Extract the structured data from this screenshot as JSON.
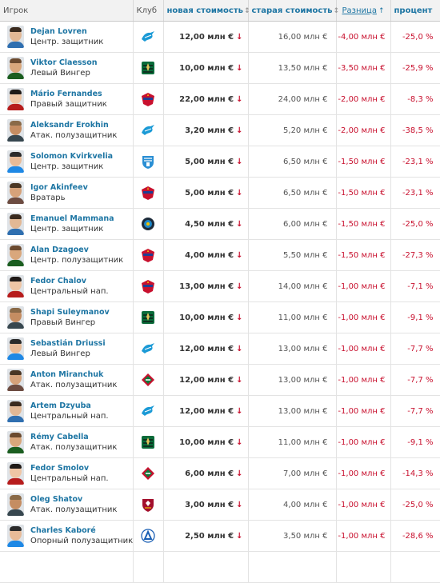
{
  "headers": {
    "player": "Игрок",
    "club": "Клуб",
    "new_value": "новая стоимость",
    "old_value": "старая стоимость",
    "difference": "Разница",
    "percent": "процент"
  },
  "colors": {
    "link": "#1d75a3",
    "negative": "#c8102e"
  },
  "rows": [
    {
      "name": "Dejan Lovren",
      "position": "Центр. защитник",
      "club_icon": "zenit-logo",
      "new_value": "12,00 млн €",
      "old_value": "16,00 млн €",
      "difference": "-4,00 млн €",
      "percent": "-25,0 %"
    },
    {
      "name": "Viktor Claesson",
      "position": "Левый Вингер",
      "club_icon": "krasnodar-logo",
      "new_value": "10,00 млн €",
      "old_value": "13,50 млн €",
      "difference": "-3,50 млн €",
      "percent": "-25,9 %"
    },
    {
      "name": "Mário Fernandes",
      "position": "Правый защитник",
      "club_icon": "cska-logo",
      "new_value": "22,00 млн €",
      "old_value": "24,00 млн €",
      "difference": "-2,00 млн €",
      "percent": "-8,3 %"
    },
    {
      "name": "Aleksandr Erokhin",
      "position": "Атак. полузащитник",
      "club_icon": "zenit-logo",
      "new_value": "3,20 млн €",
      "old_value": "5,20 млн €",
      "difference": "-2,00 млн €",
      "percent": "-38,5 %"
    },
    {
      "name": "Solomon Kvirkvelia",
      "position": "Центр. защитник",
      "club_icon": "rotor-logo",
      "new_value": "5,00 млн €",
      "old_value": "6,50 млн €",
      "difference": "-1,50 млн €",
      "percent": "-23,1 %"
    },
    {
      "name": "Igor Akinfeev",
      "position": "Вратарь",
      "club_icon": "cska-logo",
      "new_value": "5,00 млн €",
      "old_value": "6,50 млн €",
      "difference": "-1,50 млн €",
      "percent": "-23,1 %"
    },
    {
      "name": "Emanuel Mammana",
      "position": "Центр. защитник",
      "club_icon": "sochi-logo",
      "new_value": "4,50 млн €",
      "old_value": "6,00 млн €",
      "difference": "-1,50 млн €",
      "percent": "-25,0 %"
    },
    {
      "name": "Alan Dzagoev",
      "position": "Центр. полузащитник",
      "club_icon": "cska-logo",
      "new_value": "4,00 млн €",
      "old_value": "5,50 млн €",
      "difference": "-1,50 млн €",
      "percent": "-27,3 %"
    },
    {
      "name": "Fedor Chalov",
      "position": "Центральный нап.",
      "club_icon": "cska-logo",
      "new_value": "13,00 млн €",
      "old_value": "14,00 млн €",
      "difference": "-1,00 млн €",
      "percent": "-7,1 %"
    },
    {
      "name": "Shapi Suleymanov",
      "position": "Правый Вингер",
      "club_icon": "krasnodar-logo",
      "new_value": "10,00 млн €",
      "old_value": "11,00 млн €",
      "difference": "-1,00 млн €",
      "percent": "-9,1 %"
    },
    {
      "name": "Sebastián Driussi",
      "position": "Левый Вингер",
      "club_icon": "zenit-logo",
      "new_value": "12,00 млн €",
      "old_value": "13,00 млн €",
      "difference": "-1,00 млн €",
      "percent": "-7,7 %"
    },
    {
      "name": "Anton Miranchuk",
      "position": "Атак. полузащитник",
      "club_icon": "lokomotiv-logo",
      "new_value": "12,00 млн €",
      "old_value": "13,00 млн €",
      "difference": "-1,00 млн €",
      "percent": "-7,7 %"
    },
    {
      "name": "Artem Dzyuba",
      "position": "Центральный нап.",
      "club_icon": "zenit-logo",
      "new_value": "12,00 млн €",
      "old_value": "13,00 млн €",
      "difference": "-1,00 млн €",
      "percent": "-7,7 %"
    },
    {
      "name": "Rémy Cabella",
      "position": "Атак. полузащитник",
      "club_icon": "krasnodar-logo",
      "new_value": "10,00 млн €",
      "old_value": "11,00 млн €",
      "difference": "-1,00 млн €",
      "percent": "-9,1 %"
    },
    {
      "name": "Fedor Smolov",
      "position": "Центральный нап.",
      "club_icon": "lokomotiv-logo",
      "new_value": "6,00 млн €",
      "old_value": "7,00 млн €",
      "difference": "-1,00 млн €",
      "percent": "-14,3 %"
    },
    {
      "name": "Oleg Shatov",
      "position": "Атак. полузащитник",
      "club_icon": "rubin-logo",
      "new_value": "3,00 млн €",
      "old_value": "4,00 млн €",
      "difference": "-1,00 млн €",
      "percent": "-25,0 %"
    },
    {
      "name": "Charles Kaboré",
      "position": "Опорный полузащитник",
      "club_icon": "dynamo-logo",
      "new_value": "2,50 млн €",
      "old_value": "3,50 млн €",
      "difference": "-1,00 млн €",
      "percent": "-28,6 %"
    },
    {
      "name": "",
      "position": "",
      "club_icon": "",
      "new_value": "",
      "old_value": "",
      "difference": "",
      "percent": ""
    }
  ]
}
